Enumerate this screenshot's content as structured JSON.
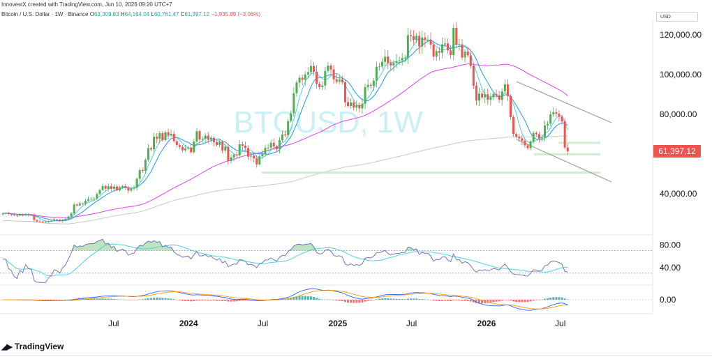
{
  "header": {
    "credit": "InnovestX created with TradingView.com, Jun 10, 2026 09:20 UTC+7",
    "symbol": "Bitcoin / U.S. Dollar · 1W · Binance",
    "o_label": "O",
    "o": "63,309.83",
    "h_label": "H",
    "h": "64,164.04",
    "l_label": "L",
    "l": "60,761.47",
    "c_label": "C",
    "c": "61,397.12",
    "change": "−1,935.89 (−3.06%)"
  },
  "currency": "USD",
  "watermark": "BTCUSD, 1W",
  "last_price_label": "61,397.12",
  "brand": "TradingView",
  "colors": {
    "up": "#26a69a",
    "upCandle": "#4caf50",
    "down": "#ef5350",
    "ma_fast": "#2196f3",
    "ma_mid": "#4dd0e1",
    "ma_pink": "#e040fb",
    "ma_grey": "#c8c8c8",
    "watermark": "#b2ebf2"
  },
  "chart_data": {
    "type": "candlestick",
    "interval": "1W",
    "x_ticks": [
      "Jul",
      "2024",
      "Jul",
      "2025",
      "Jul",
      "2026",
      "Jul"
    ],
    "x_tick_dates": [
      "2023-07-01",
      "2024-01-01",
      "2024-07-01",
      "2025-01-01",
      "2025-07-01",
      "2026-01-01",
      "2026-07-01"
    ],
    "y_ticks": [
      "120,000.00",
      "100,000.00",
      "80,000.00",
      "40,000.00"
    ],
    "y_tick_values": [
      120000,
      100000,
      80000,
      40000
    ],
    "ylim": [
      20000,
      127000
    ],
    "closes": [
      30000,
      30400,
      29800,
      29700,
      29300,
      29100,
      29400,
      29200,
      29600,
      29300,
      29200,
      26800,
      26100,
      26000,
      25900,
      25900,
      26300,
      26500,
      27100,
      26900,
      26300,
      27000,
      27400,
      28500,
      30100,
      34600,
      34100,
      35100,
      35000,
      36500,
      37300,
      37500,
      37600,
      39900,
      41900,
      43900,
      42600,
      43800,
      42500,
      43600,
      41800,
      43200,
      43900,
      43300,
      41600,
      42600,
      43100,
      47600,
      51900,
      51600,
      57100,
      63000,
      62400,
      68700,
      67600,
      70500,
      67000,
      71000,
      69500,
      70200,
      66500,
      64500,
      63600,
      61900,
      62800,
      63300,
      60900,
      66300,
      71500,
      67300,
      67600,
      69300,
      67200,
      68100,
      66000,
      64600,
      66200,
      61800,
      63700,
      56500,
      58300,
      59600,
      59400,
      64900,
      64200,
      63000,
      58700,
      59200,
      57900,
      54800,
      58900,
      60000,
      63100,
      63200,
      65700,
      63900,
      62400,
      67000,
      69900,
      69500,
      76600,
      80500,
      90600,
      96000,
      98400,
      97400,
      100000,
      101200,
      104300,
      101400,
      95300,
      93700,
      94500,
      101800,
      104500,
      102600,
      97600,
      96500,
      97500,
      96100,
      86100,
      84200,
      86000,
      83400,
      84600,
      83000,
      85300,
      93700,
      94800,
      94300,
      96900,
      103900,
      104100,
      106400,
      109000,
      105800,
      104600,
      105900,
      106700,
      107100,
      108300,
      108400,
      119800,
      119300,
      117400,
      119500,
      114200,
      118700,
      117400,
      117400,
      115100,
      109000,
      111800,
      111000,
      115200,
      115700,
      112200,
      109800,
      123500,
      115000,
      115200,
      108600,
      111500,
      109700,
      104300,
      94400,
      86900,
      90400,
      88500,
      90100,
      87300,
      88600,
      90200,
      89500,
      87300,
      91500,
      95100,
      89200,
      78600,
      70100,
      68800,
      67900,
      66700,
      64400,
      63000,
      66300,
      70600,
      70000,
      67800,
      68300,
      74400,
      75200,
      80000,
      81000,
      80300,
      78800,
      76500,
      63300,
      61397
    ],
    "moving_averages": [
      {
        "name": "ma-fast",
        "period": 9
      },
      {
        "name": "ma-mid",
        "period": 5
      },
      {
        "name": "ma-pink",
        "period": 50
      },
      {
        "name": "ma-grey",
        "period": 200
      }
    ],
    "last_price": 61397.12,
    "rsi": {
      "y_ticks": [
        "80.00",
        "40.00"
      ],
      "levels": [
        80,
        40
      ],
      "ylim": [
        20,
        88
      ]
    },
    "macd": {
      "y_ticks": [
        "0.00"
      ]
    }
  }
}
